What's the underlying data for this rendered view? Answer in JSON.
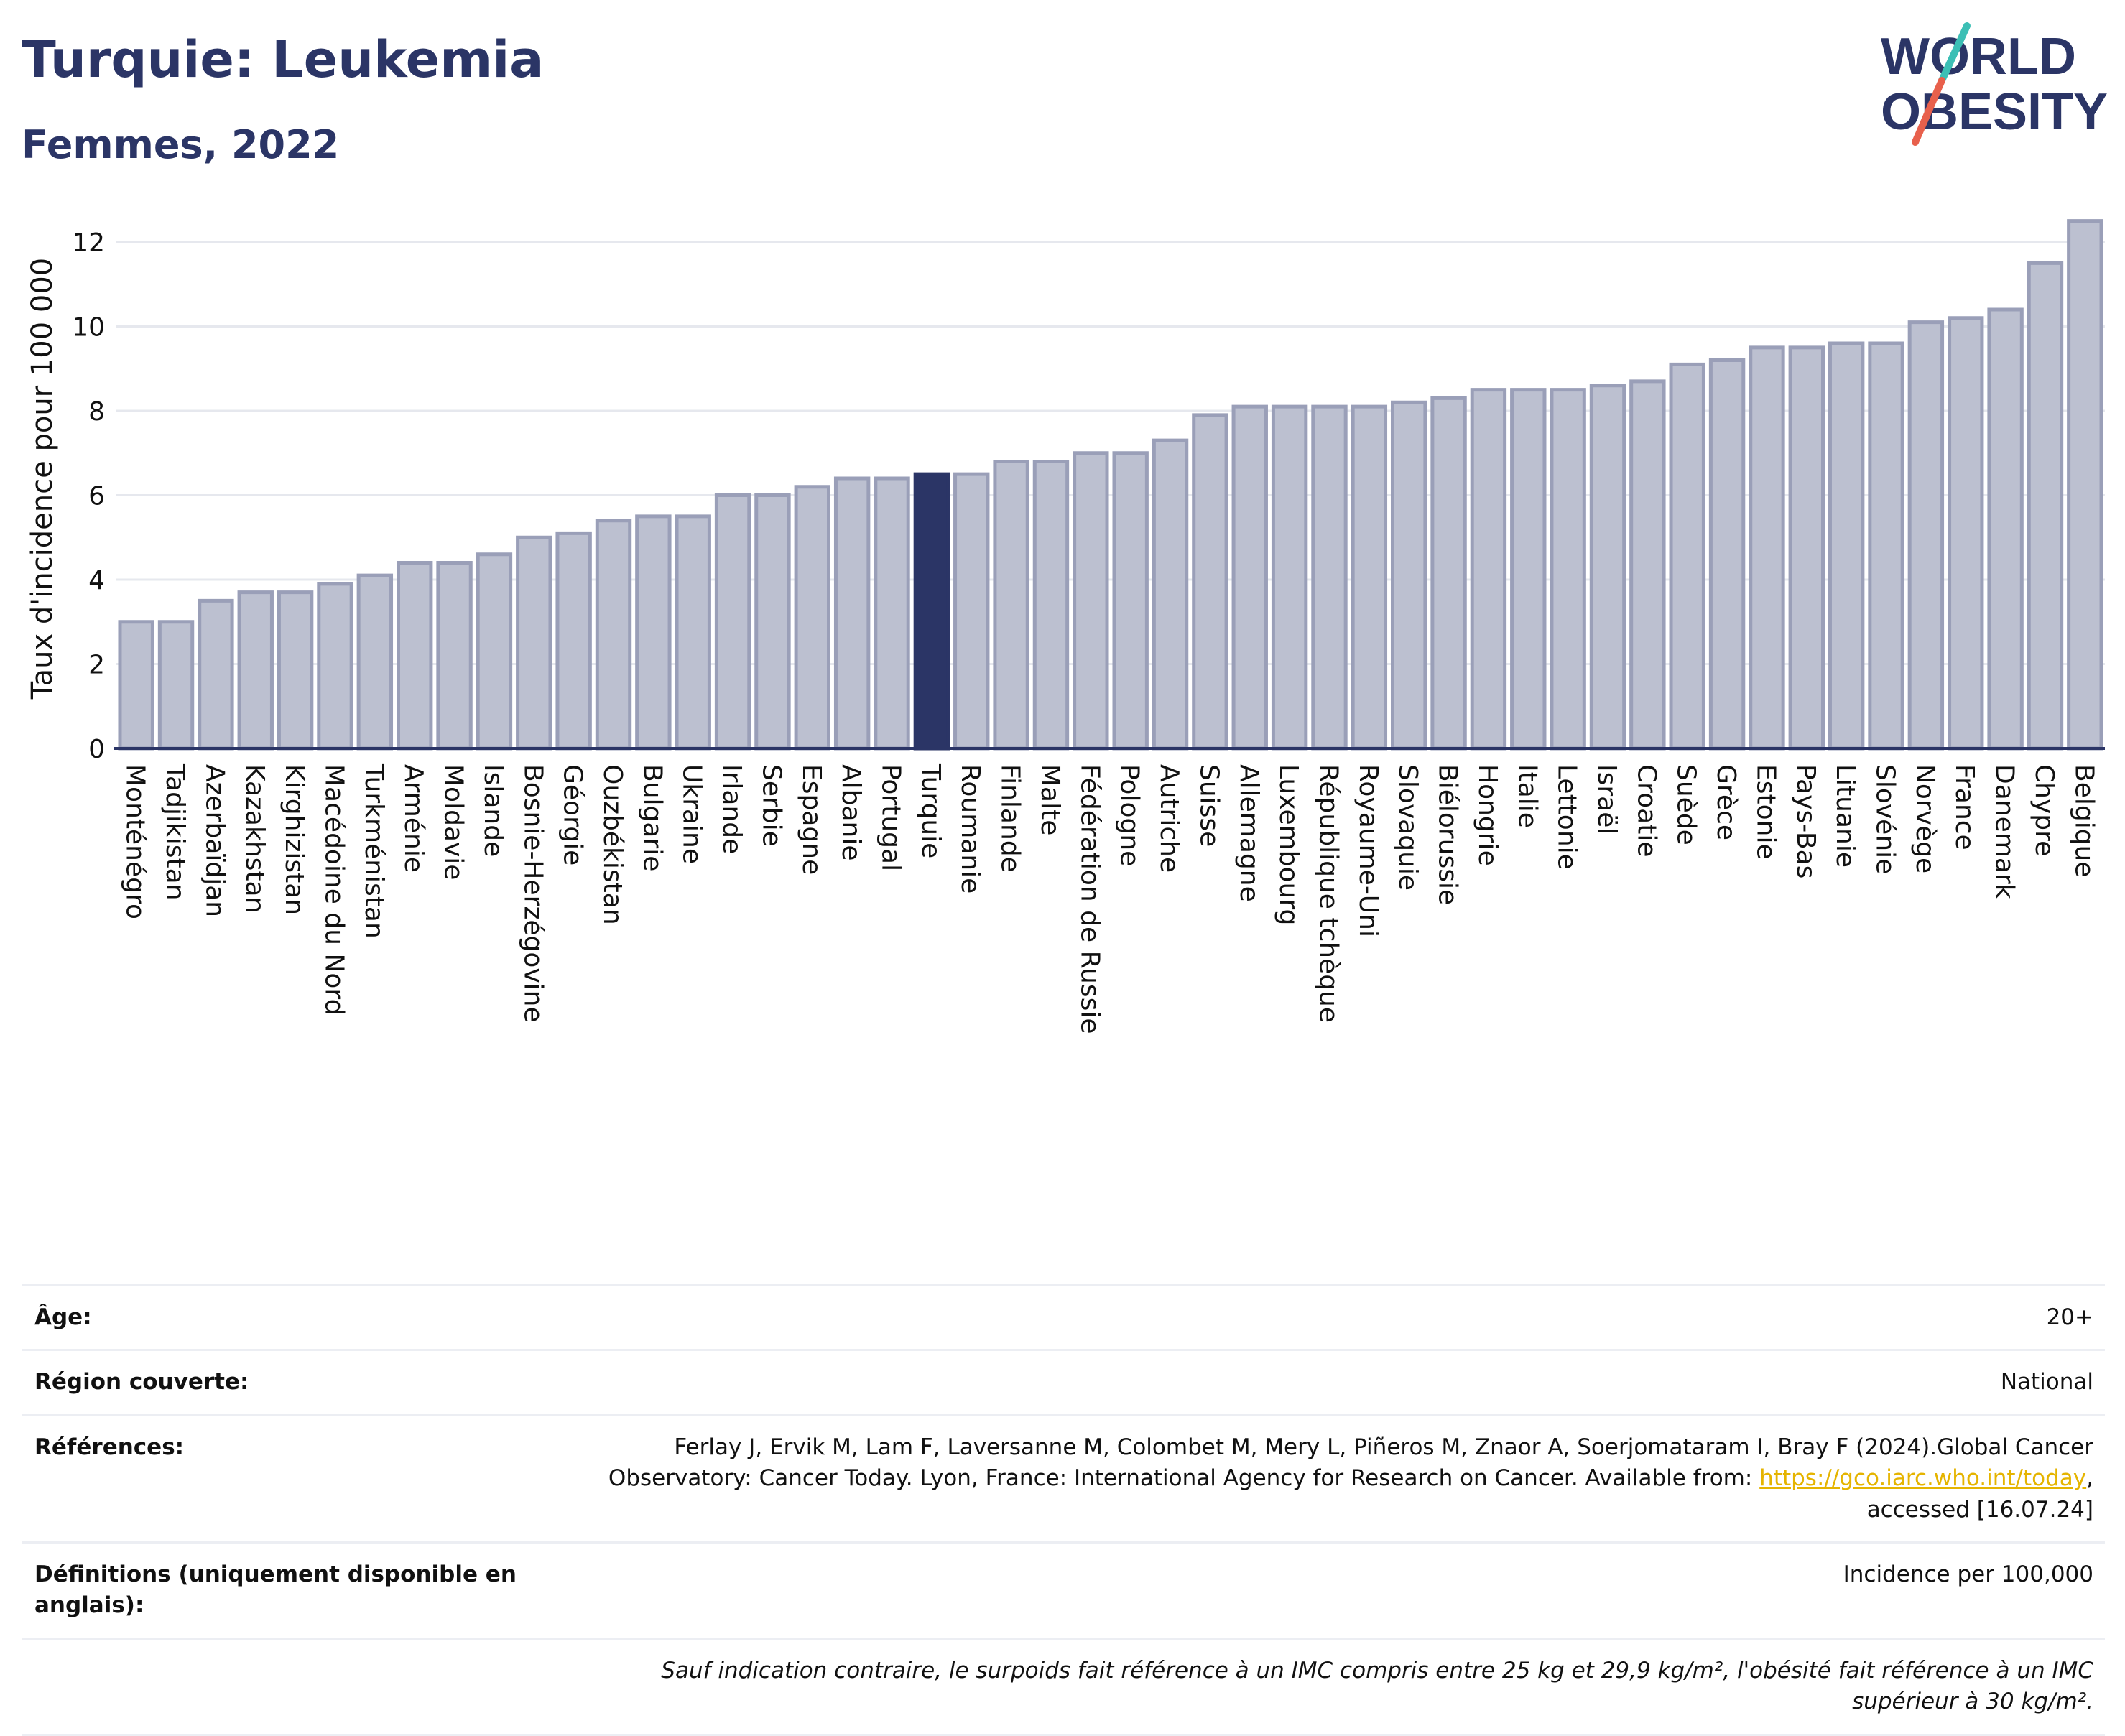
{
  "header": {
    "title": "Turquie: Leukemia",
    "subtitle": "Femmes, 2022",
    "logo_line1": "WORLD",
    "logo_line2": "OBESITY"
  },
  "colors": {
    "bar": "#bcc0d0",
    "bar_border": "#9a9fb8",
    "highlight": "#2b3566",
    "text": "#2b3566",
    "logo_teal": "#3cbfb5",
    "logo_coral": "#e8604c",
    "link": "#e5b400"
  },
  "chart_data": {
    "type": "bar",
    "ylabel": "Taux d'incidence pour 100 000",
    "ylim": [
      0,
      12.8
    ],
    "yticks": [
      0,
      2,
      4,
      6,
      8,
      10,
      12
    ],
    "grid": true,
    "highlight": "Turquie",
    "categories": [
      "Monténégro",
      "Tadjikistan",
      "Azerbaïdjan",
      "Kazakhstan",
      "Kirghizistan",
      "Macédoine du Nord",
      "Turkménistan",
      "Arménie",
      "Moldavie",
      "Islande",
      "Bosnie-Herzégovine",
      "Géorgie",
      "Ouzbékistan",
      "Bulgarie",
      "Ukraine",
      "Irlande",
      "Serbie",
      "Espagne",
      "Albanie",
      "Portugal",
      "Turquie",
      "Roumanie",
      "Finlande",
      "Malte",
      "Fédération de Russie",
      "Pologne",
      "Autriche",
      "Suisse",
      "Allemagne",
      "Luxembourg",
      "République tchèque",
      "Royaume-Uni",
      "Slovaquie",
      "Biélorussie",
      "Hongrie",
      "Italie",
      "Lettonie",
      "Israël",
      "Croatie",
      "Suède",
      "Grèce",
      "Estonie",
      "Pays-Bas",
      "Lituanie",
      "Slovénie",
      "Norvège",
      "France",
      "Danemark",
      "Chypre",
      "Belgique"
    ],
    "values": [
      3.0,
      3.0,
      3.5,
      3.7,
      3.7,
      3.9,
      4.1,
      4.4,
      4.4,
      4.6,
      5.0,
      5.1,
      5.4,
      5.5,
      5.5,
      6.0,
      6.0,
      6.2,
      6.4,
      6.4,
      6.5,
      6.5,
      6.8,
      6.8,
      7.0,
      7.0,
      7.3,
      7.9,
      8.1,
      8.1,
      8.1,
      8.1,
      8.2,
      8.3,
      8.5,
      8.5,
      8.5,
      8.6,
      8.7,
      9.1,
      9.2,
      9.5,
      9.5,
      9.6,
      9.6,
      10.1,
      10.2,
      10.4,
      11.5,
      12.5
    ]
  },
  "info": {
    "age_label": "Âge:",
    "age_value": "20+",
    "region_label": "Région couverte:",
    "region_value": "National",
    "refs_label": "Références:",
    "refs_text_1": "Ferlay J, Ervik M, Lam F, Laversanne M, Colombet M, Mery L, Piñeros M, Znaor A, Soerjomataram I, Bray F (2024).Global Cancer Observatory: Cancer Today. Lyon, France: International Agency for Research on Cancer. Available from: ",
    "refs_link": "https://gco.iarc.who.int/today",
    "refs_text_2": ", accessed [16.07.24]",
    "defs_label": "Définitions (uniquement disponible en anglais):",
    "defs_value": "Incidence per 100,000",
    "note": "Sauf indication contraire, le surpoids fait référence à un IMC compris entre 25 kg et 29,9 kg/m², l'obésité fait référence à un IMC supérieur à 30 kg/m²."
  }
}
